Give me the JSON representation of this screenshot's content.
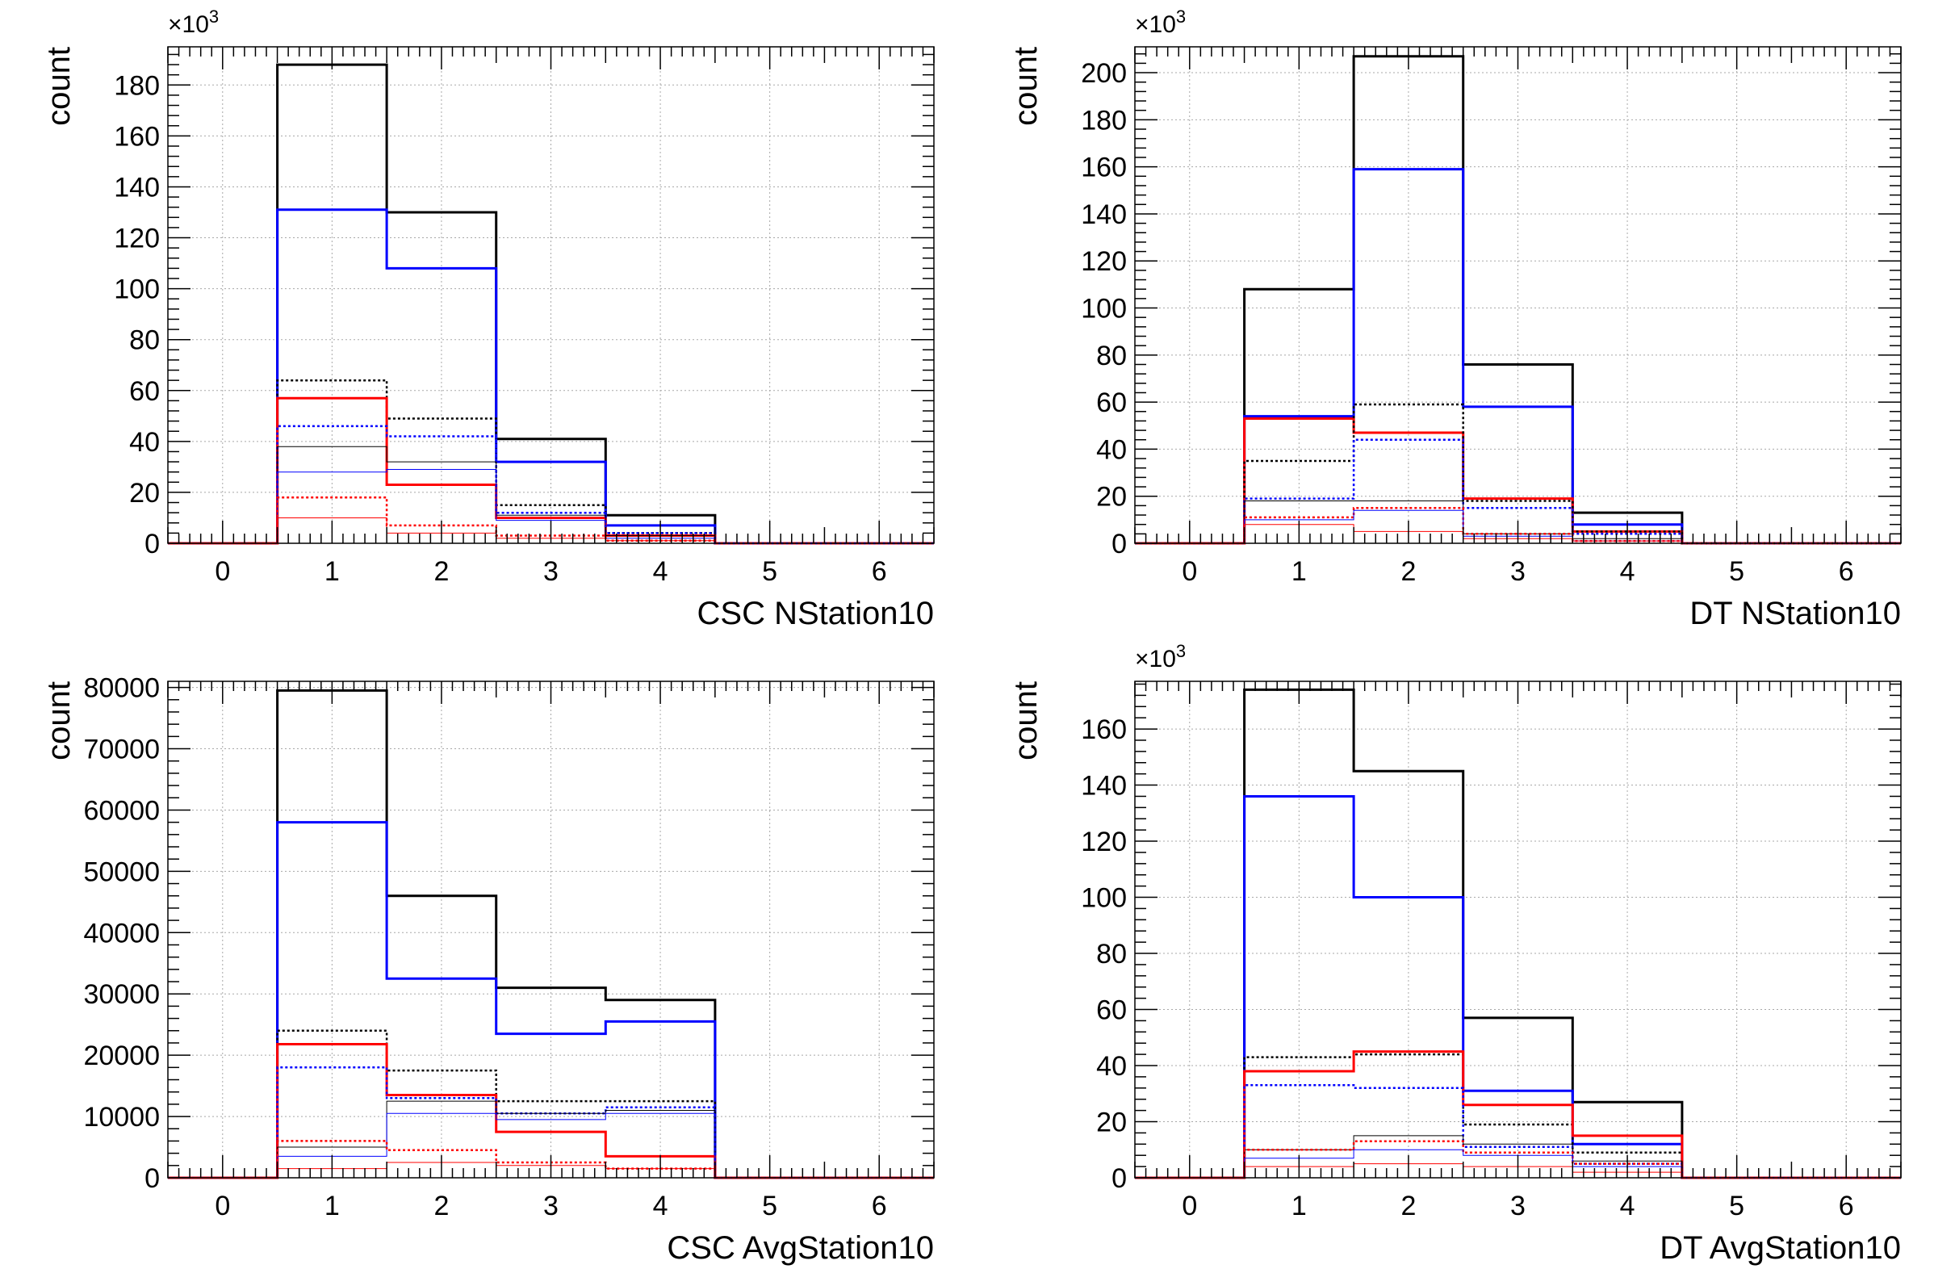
{
  "chart_data": [
    {
      "type": "histogram",
      "xlabel": "CSC NStation10",
      "ylabel": "count",
      "exponent_label": "×10",
      "exponent_power": "3",
      "xlim": [
        -0.5,
        6.5
      ],
      "ylim": [
        0,
        195
      ],
      "yticks": [
        0,
        20,
        40,
        60,
        80,
        100,
        120,
        140,
        160,
        180
      ],
      "xticks": [
        0,
        1,
        2,
        3,
        4,
        5,
        6
      ],
      "grid": true,
      "bin_edges": [
        -0.5,
        0.5,
        1.5,
        2.5,
        3.5,
        4.5,
        5.5,
        6.5
      ],
      "series": [
        {
          "values": [
            0,
            188,
            130,
            41,
            11,
            0,
            0
          ],
          "color": "#000000",
          "style": "solid",
          "width": 3
        },
        {
          "values": [
            0,
            131,
            108,
            32,
            7,
            0,
            0
          ],
          "color": "#0000ff",
          "style": "solid",
          "width": 3
        },
        {
          "values": [
            0,
            64,
            49,
            15,
            4,
            0,
            0
          ],
          "color": "#000000",
          "style": "dotted",
          "width": 2.5
        },
        {
          "values": [
            0,
            57,
            23,
            10,
            3,
            0,
            0
          ],
          "color": "#ff0000",
          "style": "solid",
          "width": 3
        },
        {
          "values": [
            0,
            46,
            42,
            12,
            4,
            0,
            0
          ],
          "color": "#0000ff",
          "style": "dotted",
          "width": 2.5
        },
        {
          "values": [
            0,
            38,
            32,
            11,
            3,
            0,
            0
          ],
          "color": "#000000",
          "style": "thin",
          "width": 1
        },
        {
          "values": [
            0,
            28,
            29,
            9,
            2,
            0,
            0
          ],
          "color": "#0000ff",
          "style": "thin",
          "width": 1
        },
        {
          "values": [
            0,
            18,
            7,
            3,
            1,
            0,
            0
          ],
          "color": "#ff0000",
          "style": "dotted",
          "width": 2.5
        },
        {
          "values": [
            0,
            10,
            4,
            2,
            1,
            0,
            0
          ],
          "color": "#ff0000",
          "style": "thin",
          "width": 1
        }
      ]
    },
    {
      "type": "histogram",
      "xlabel": "DT NStation10",
      "ylabel": "count",
      "exponent_label": "×10",
      "exponent_power": "3",
      "xlim": [
        -0.5,
        6.5
      ],
      "ylim": [
        0,
        211
      ],
      "yticks": [
        0,
        20,
        40,
        60,
        80,
        100,
        120,
        140,
        160,
        180,
        200
      ],
      "xticks": [
        0,
        1,
        2,
        3,
        4,
        5,
        6
      ],
      "grid": true,
      "bin_edges": [
        -0.5,
        0.5,
        1.5,
        2.5,
        3.5,
        4.5,
        5.5,
        6.5
      ],
      "series": [
        {
          "values": [
            0,
            108,
            207,
            76,
            13,
            0,
            0
          ],
          "color": "#000000",
          "style": "solid",
          "width": 3
        },
        {
          "values": [
            0,
            54,
            159,
            58,
            8,
            0,
            0
          ],
          "color": "#0000ff",
          "style": "solid",
          "width": 3
        },
        {
          "values": [
            0,
            53,
            47,
            19,
            5,
            0,
            0
          ],
          "color": "#ff0000",
          "style": "solid",
          "width": 3
        },
        {
          "values": [
            0,
            35,
            59,
            18,
            5,
            0,
            0
          ],
          "color": "#000000",
          "style": "dotted",
          "width": 2.5
        },
        {
          "values": [
            0,
            19,
            44,
            15,
            4,
            0,
            0
          ],
          "color": "#0000ff",
          "style": "dotted",
          "width": 2.5
        },
        {
          "values": [
            0,
            18,
            18,
            4,
            2,
            0,
            0
          ],
          "color": "#000000",
          "style": "thin",
          "width": 1
        },
        {
          "values": [
            0,
            11,
            15,
            4,
            1,
            0,
            0
          ],
          "color": "#ff0000",
          "style": "dotted",
          "width": 2.5
        },
        {
          "values": [
            0,
            10,
            14,
            3,
            1,
            0,
            0
          ],
          "color": "#0000ff",
          "style": "thin",
          "width": 1
        },
        {
          "values": [
            0,
            8,
            5,
            2,
            1,
            0,
            0
          ],
          "color": "#ff0000",
          "style": "thin",
          "width": 1
        }
      ]
    },
    {
      "type": "histogram",
      "xlabel": "CSC AvgStation10",
      "ylabel": "count",
      "exponent_label": "",
      "exponent_power": "",
      "xlim": [
        -0.5,
        6.5
      ],
      "ylim": [
        0,
        81000
      ],
      "yticks": [
        0,
        10000,
        20000,
        30000,
        40000,
        50000,
        60000,
        70000,
        80000
      ],
      "xticks": [
        0,
        1,
        2,
        3,
        4,
        5,
        6
      ],
      "grid": true,
      "bin_edges": [
        -0.5,
        0.5,
        1.5,
        2.5,
        3.5,
        4.5,
        5.5,
        6.5
      ],
      "series": [
        {
          "values": [
            0,
            79500,
            46000,
            31000,
            29000,
            0,
            0
          ],
          "color": "#000000",
          "style": "solid",
          "width": 3
        },
        {
          "values": [
            0,
            58000,
            32500,
            23500,
            25500,
            0,
            0
          ],
          "color": "#0000ff",
          "style": "solid",
          "width": 3
        },
        {
          "values": [
            0,
            24000,
            17500,
            12500,
            12500,
            0,
            0
          ],
          "color": "#000000",
          "style": "dotted",
          "width": 2.5
        },
        {
          "values": [
            0,
            21800,
            13500,
            7500,
            3500,
            0,
            0
          ],
          "color": "#ff0000",
          "style": "solid",
          "width": 3
        },
        {
          "values": [
            0,
            18000,
            13000,
            10500,
            11500,
            0,
            0
          ],
          "color": "#0000ff",
          "style": "dotted",
          "width": 2.5
        },
        {
          "values": [
            0,
            5000,
            12500,
            10500,
            11000,
            0,
            0
          ],
          "color": "#000000",
          "style": "thin",
          "width": 1
        },
        {
          "values": [
            0,
            3500,
            10500,
            9500,
            10500,
            0,
            0
          ],
          "color": "#0000ff",
          "style": "thin",
          "width": 1
        },
        {
          "values": [
            0,
            6000,
            4500,
            2500,
            1500,
            0,
            0
          ],
          "color": "#ff0000",
          "style": "dotted",
          "width": 2.5
        },
        {
          "values": [
            0,
            1500,
            2500,
            2000,
            1500,
            0,
            0
          ],
          "color": "#ff0000",
          "style": "thin",
          "width": 1
        }
      ]
    },
    {
      "type": "histogram",
      "xlabel": "DT AvgStation10",
      "ylabel": "count",
      "exponent_label": "×10",
      "exponent_power": "3",
      "xlim": [
        -0.5,
        6.5
      ],
      "ylim": [
        0,
        177
      ],
      "yticks": [
        0,
        20,
        40,
        60,
        80,
        100,
        120,
        140,
        160
      ],
      "xticks": [
        0,
        1,
        2,
        3,
        4,
        5,
        6
      ],
      "grid": true,
      "bin_edges": [
        -0.5,
        0.5,
        1.5,
        2.5,
        3.5,
        4.5,
        5.5,
        6.5
      ],
      "series": [
        {
          "values": [
            0,
            174,
            145,
            57,
            27,
            0,
            0
          ],
          "color": "#000000",
          "style": "solid",
          "width": 3
        },
        {
          "values": [
            0,
            136,
            100,
            31,
            12,
            0,
            0
          ],
          "color": "#0000ff",
          "style": "solid",
          "width": 3
        },
        {
          "values": [
            0,
            43,
            44,
            19,
            9,
            0,
            0
          ],
          "color": "#000000",
          "style": "dotted",
          "width": 2.5
        },
        {
          "values": [
            0,
            38,
            45,
            26,
            15,
            0,
            0
          ],
          "color": "#ff0000",
          "style": "solid",
          "width": 3
        },
        {
          "values": [
            0,
            33,
            32,
            11,
            5,
            0,
            0
          ],
          "color": "#0000ff",
          "style": "dotted",
          "width": 2.5
        },
        {
          "values": [
            0,
            10,
            15,
            12,
            6,
            0,
            0
          ],
          "color": "#000000",
          "style": "thin",
          "width": 1
        },
        {
          "values": [
            0,
            10,
            13,
            9,
            5,
            0,
            0
          ],
          "color": "#ff0000",
          "style": "dotted",
          "width": 2.5
        },
        {
          "values": [
            0,
            7,
            10,
            8,
            4,
            0,
            0
          ],
          "color": "#0000ff",
          "style": "thin",
          "width": 1
        },
        {
          "values": [
            0,
            4,
            5,
            4,
            2,
            0,
            0
          ],
          "color": "#ff0000",
          "style": "thin",
          "width": 1
        }
      ]
    }
  ]
}
